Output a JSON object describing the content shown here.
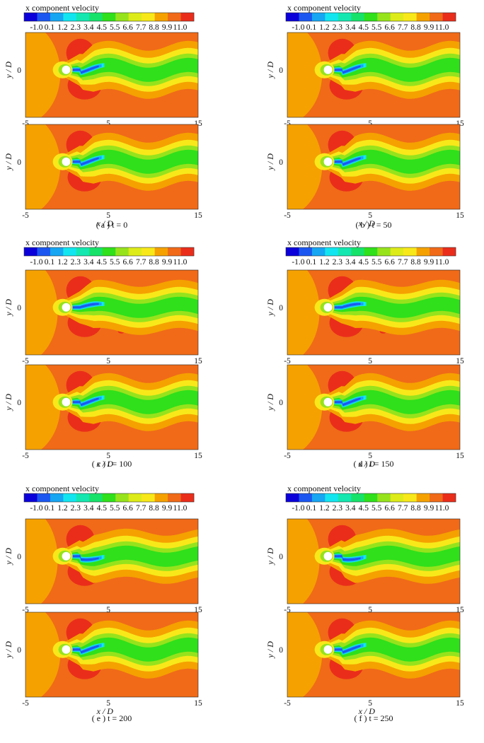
{
  "colorbar": {
    "title": "x component velocity",
    "levels": [
      "-1.0",
      "0.1",
      "1.2",
      "2.3",
      "3.4",
      "4.5",
      "5.5",
      "6.6",
      "7.7",
      "8.8",
      "9.9",
      "11.0"
    ],
    "colors": [
      "#0b00d9",
      "#1b56f0",
      "#16a6f2",
      "#12e5ef",
      "#14e7b0",
      "#16e26a",
      "#2fe01a",
      "#96e31c",
      "#ddeb19",
      "#f8e81a",
      "#f5a100",
      "#f06a18",
      "#ea2d1b"
    ]
  },
  "axes": {
    "xlabel": "x / D",
    "ylabel": "y / D",
    "xticks": [
      "-5",
      "5",
      "15"
    ],
    "yticks": [
      "0"
    ]
  },
  "panels": [
    {
      "id": "a",
      "caption": "( a )  t  =  0"
    },
    {
      "id": "b",
      "caption": "( b )  t  =  50"
    },
    {
      "id": "c",
      "caption": "( c )  t  =  100"
    },
    {
      "id": "d",
      "caption": "( d )  t  =  150"
    },
    {
      "id": "e",
      "caption": "( e )  t  =  200"
    },
    {
      "id": "f",
      "caption": "( f )  t  =  250"
    }
  ],
  "field_colors": {
    "background": "#f06a18",
    "inlet": "#f5a100",
    "red_region": "#ea2d1b",
    "wake_outer": "#f8e81a",
    "wake_mid": "#96e31c",
    "wake_green": "#2fe01a",
    "wake_cyan": "#12e5ef",
    "wake_blue": "#16a6f2",
    "wake_core": "#1b56f0",
    "cylinder": "#ffffff"
  }
}
